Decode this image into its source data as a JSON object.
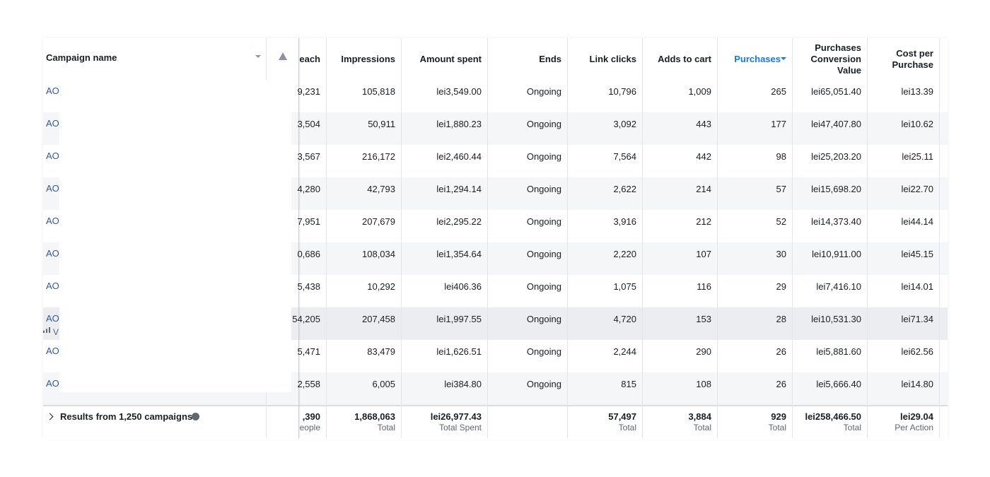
{
  "table": {
    "columns": [
      "Campaign name",
      "each",
      "Impressions",
      "Amount spent",
      "Ends",
      "Link clicks",
      "Adds to cart",
      "Purchases",
      "Purchases Conversion Value",
      "Cost per Purchase"
    ],
    "rows": [
      {
        "cells": [
          "AO",
          "9,231",
          "105,818",
          "lei3,549.00",
          "Ongoing",
          "10,796",
          "1,009",
          "265",
          "lei65,051.40",
          "lei13.39"
        ]
      },
      {
        "cells": [
          "AO",
          "3,504",
          "50,911",
          "lei1,880.23",
          "Ongoing",
          "3,092",
          "443",
          "177",
          "lei47,407.80",
          "lei10.62"
        ]
      },
      {
        "cells": [
          "AO",
          "3,567",
          "216,172",
          "lei2,460.44",
          "Ongoing",
          "7,564",
          "442",
          "98",
          "lei25,203.20",
          "lei25.11"
        ]
      },
      {
        "cells": [
          "AO",
          "4,280",
          "42,793",
          "lei1,294.14",
          "Ongoing",
          "2,622",
          "214",
          "57",
          "lei15,698.20",
          "lei22.70"
        ]
      },
      {
        "cells": [
          "AO",
          "7,951",
          "207,679",
          "lei2,295.22",
          "Ongoing",
          "3,916",
          "212",
          "52",
          "lei14,373.40",
          "lei44.14"
        ]
      },
      {
        "cells": [
          "AO",
          "0,686",
          "108,034",
          "lei1,354.64",
          "Ongoing",
          "2,220",
          "107",
          "30",
          "lei10,911.00",
          "lei45.15"
        ]
      },
      {
        "cells": [
          "AO",
          "5,438",
          "10,292",
          "lei406.36",
          "Ongoing",
          "1,075",
          "116",
          "29",
          "lei7,416.10",
          "lei14.01"
        ]
      },
      {
        "cells": [
          "AO",
          "54,205",
          "207,458",
          "lei1,997.55",
          "Ongoing",
          "4,720",
          "153",
          "28",
          "lei10,531.30",
          "lei71.34"
        ],
        "sub": "V"
      },
      {
        "cells": [
          "AO",
          "5,471",
          "83,479",
          "lei1,626.51",
          "Ongoing",
          "2,244",
          "290",
          "26",
          "lei5,881.60",
          "lei62.56"
        ]
      },
      {
        "cells": [
          "AO",
          "2,558",
          "6,005",
          "lei384.80",
          "Ongoing",
          "815",
          "108",
          "26",
          "lei5,666.40",
          "lei14.80"
        ]
      }
    ],
    "footer": {
      "label": "Results from 1,250 campaigns",
      "cells": [
        null,
        {
          "value": ",390",
          "note": "eople"
        },
        {
          "value": "1,868,063",
          "note": "Total"
        },
        {
          "value": "lei26,977.43",
          "note": "Total Spent"
        },
        null,
        {
          "value": "57,497",
          "note": "Total"
        },
        {
          "value": "3,884",
          "note": "Total"
        },
        {
          "value": "929",
          "note": "Total"
        },
        {
          "value": "lei258,466.50",
          "note": "Total"
        },
        {
          "value": "lei29.04",
          "note": "Per Action"
        }
      ]
    }
  }
}
